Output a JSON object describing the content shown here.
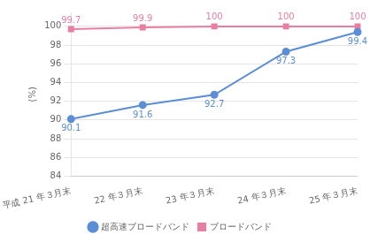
{
  "chart_data": {
    "type": "line",
    "ylabel": "(%)",
    "categories": [
      "平成 21 年３月末",
      "22 年３月末",
      "23 年３月末",
      "24 年３月末",
      "25 年３月末"
    ],
    "series": [
      {
        "name": "超高速ブロードバンド",
        "color": "#5b8ed6",
        "marker": "circle",
        "values": [
          90.1,
          91.6,
          92.7,
          97.3,
          99.4
        ]
      },
      {
        "name": "ブロードバンド",
        "color": "#e87fa0",
        "marker": "square",
        "values": [
          99.7,
          99.9,
          100,
          100,
          100
        ]
      }
    ],
    "ylim": [
      84,
      101.5
    ],
    "yticks": [
      84,
      86,
      88,
      90,
      92,
      94,
      96,
      98,
      100
    ],
    "grid": true,
    "legend": "bottom",
    "data_labels": true
  }
}
